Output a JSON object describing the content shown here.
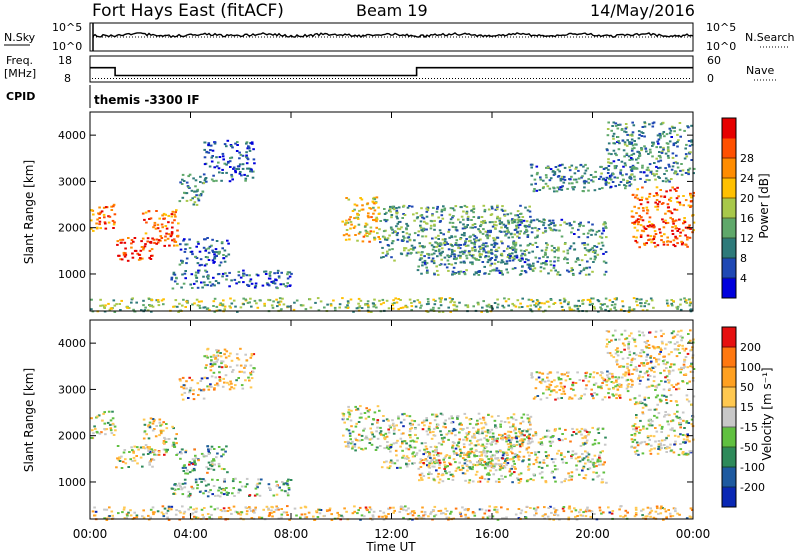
{
  "header": {
    "title": "Fort Hays East (fitACF)",
    "beam": "Beam 19",
    "date": "14/May/2016"
  },
  "top_panels": {
    "noise": {
      "left_label": "N.Sky",
      "right_label": "N.Search",
      "left_ticks": [
        "10^5",
        "10^0"
      ],
      "right_ticks": [
        "10^5",
        "10^0"
      ]
    },
    "freq": {
      "left_label_1": "Freq.",
      "left_label_2": "[MHz]",
      "right_label": "Nave",
      "left_ticks": [
        "18",
        "8"
      ],
      "right_ticks": [
        "60",
        "0"
      ],
      "freq_segments": [
        {
          "x0": 0,
          "x1": 1.0,
          "value": 13.5
        },
        {
          "x0": 1.0,
          "x1": 13.0,
          "value": 10.5
        },
        {
          "x0": 13.0,
          "x1": 24,
          "value": 13.5
        }
      ],
      "nave_level": 8
    },
    "cpid": {
      "label": "CPID",
      "text": "themis -3300 IF"
    }
  },
  "chart_data": [
    {
      "type": "heatmap",
      "title": "",
      "xlabel": "",
      "ylabel": "Slant Range [km]",
      "xlim": [
        0,
        24
      ],
      "ylim": [
        200,
        4500
      ],
      "yticks": [
        "1000",
        "2000",
        "3000",
        "4000"
      ],
      "colorbar": {
        "label": "Power [dB]",
        "ticks": [
          "4",
          "8",
          "12",
          "16",
          "20",
          "24",
          "28"
        ],
        "colors": [
          "#0000dc",
          "#1f48b4",
          "#2e7a7a",
          "#5fa86a",
          "#a8c84a",
          "#ffc000",
          "#ff8c00",
          "#ff5000",
          "#e60000"
        ]
      },
      "echo_regions": [
        {
          "x0": 0.0,
          "x1": 1.0,
          "y0": 1950,
          "y1": 2550,
          "level": 0.75
        },
        {
          "x0": 1.0,
          "x1": 2.5,
          "y0": 1300,
          "y1": 1800,
          "level": 0.9
        },
        {
          "x0": 2.0,
          "x1": 3.5,
          "y0": 1600,
          "y1": 2400,
          "level": 0.8
        },
        {
          "x0": 3.5,
          "x1": 4.5,
          "y0": 2500,
          "y1": 3200,
          "level": 0.35
        },
        {
          "x0": 4.5,
          "x1": 6.5,
          "y0": 3000,
          "y1": 3900,
          "level": 0.2
        },
        {
          "x0": 3.5,
          "x1": 5.5,
          "y0": 1200,
          "y1": 1800,
          "level": 0.2
        },
        {
          "x0": 3.2,
          "x1": 8.0,
          "y0": 700,
          "y1": 1100,
          "level": 0.22
        },
        {
          "x0": 10.0,
          "x1": 11.5,
          "y0": 1700,
          "y1": 2700,
          "level": 0.6
        },
        {
          "x0": 11.5,
          "x1": 17.5,
          "y0": 1300,
          "y1": 2500,
          "level": 0.35
        },
        {
          "x0": 13.0,
          "x1": 20.5,
          "y0": 1000,
          "y1": 1700,
          "level": 0.3
        },
        {
          "x0": 15.0,
          "x1": 20.5,
          "y0": 1800,
          "y1": 2200,
          "level": 0.3
        },
        {
          "x0": 17.5,
          "x1": 21.5,
          "y0": 2800,
          "y1": 3400,
          "level": 0.28
        },
        {
          "x0": 21.5,
          "x1": 24.0,
          "y0": 1600,
          "y1": 2900,
          "level": 0.8
        },
        {
          "x0": 20.5,
          "x1": 24.0,
          "y0": 3000,
          "y1": 4300,
          "level": 0.3
        },
        {
          "x0": 0.0,
          "x1": 24.0,
          "y0": 200,
          "y1": 500,
          "level": 0.45
        }
      ]
    },
    {
      "type": "heatmap",
      "title": "",
      "xlabel": "Time UT",
      "ylabel": "Slant Range [km]",
      "xlim": [
        0,
        24
      ],
      "ylim": [
        200,
        4500
      ],
      "xticks": [
        "00:00",
        "04:00",
        "08:00",
        "12:00",
        "16:00",
        "20:00",
        "00:00"
      ],
      "yticks": [
        "1000",
        "2000",
        "3000",
        "4000"
      ],
      "colorbar": {
        "label": "Velocity [m s⁻¹]",
        "ticks": [
          "200",
          "100",
          "50",
          "15",
          "-15",
          "-50",
          "-100",
          "-200"
        ],
        "colors": [
          "#0a28b4",
          "#1e5aa0",
          "#2e8a5a",
          "#60c040",
          "#c8c8c8",
          "#ffc850",
          "#ffa020",
          "#ff7810",
          "#e61010"
        ]
      },
      "echo_regions": [
        {
          "x0": 0.0,
          "x1": 1.0,
          "y0": 1950,
          "y1": 2550,
          "level": 0.5
        },
        {
          "x0": 1.0,
          "x1": 2.5,
          "y0": 1300,
          "y1": 1800,
          "level": 0.5
        },
        {
          "x0": 2.0,
          "x1": 3.5,
          "y0": 1600,
          "y1": 2400,
          "level": 0.5
        },
        {
          "x0": 3.5,
          "x1": 4.5,
          "y0": 2800,
          "y1": 3300,
          "level": 0.65
        },
        {
          "x0": 4.5,
          "x1": 6.5,
          "y0": 3000,
          "y1": 3900,
          "level": 0.55
        },
        {
          "x0": 3.5,
          "x1": 5.5,
          "y0": 1200,
          "y1": 1800,
          "level": 0.35
        },
        {
          "x0": 3.2,
          "x1": 8.0,
          "y0": 700,
          "y1": 1100,
          "level": 0.35
        },
        {
          "x0": 10.0,
          "x1": 11.5,
          "y0": 1700,
          "y1": 2700,
          "level": 0.5
        },
        {
          "x0": 11.5,
          "x1": 17.5,
          "y0": 1300,
          "y1": 2500,
          "level": 0.5
        },
        {
          "x0": 13.0,
          "x1": 20.5,
          "y0": 1000,
          "y1": 1700,
          "level": 0.5
        },
        {
          "x0": 15.0,
          "x1": 20.5,
          "y0": 1800,
          "y1": 2200,
          "level": 0.5
        },
        {
          "x0": 17.5,
          "x1": 21.5,
          "y0": 2800,
          "y1": 3400,
          "level": 0.55
        },
        {
          "x0": 21.5,
          "x1": 24.0,
          "y0": 1600,
          "y1": 2900,
          "level": 0.5
        },
        {
          "x0": 20.5,
          "x1": 24.0,
          "y0": 3000,
          "y1": 4300,
          "level": 0.58
        },
        {
          "x0": 0.0,
          "x1": 24.0,
          "y0": 200,
          "y1": 500,
          "level": 0.62
        }
      ]
    }
  ]
}
